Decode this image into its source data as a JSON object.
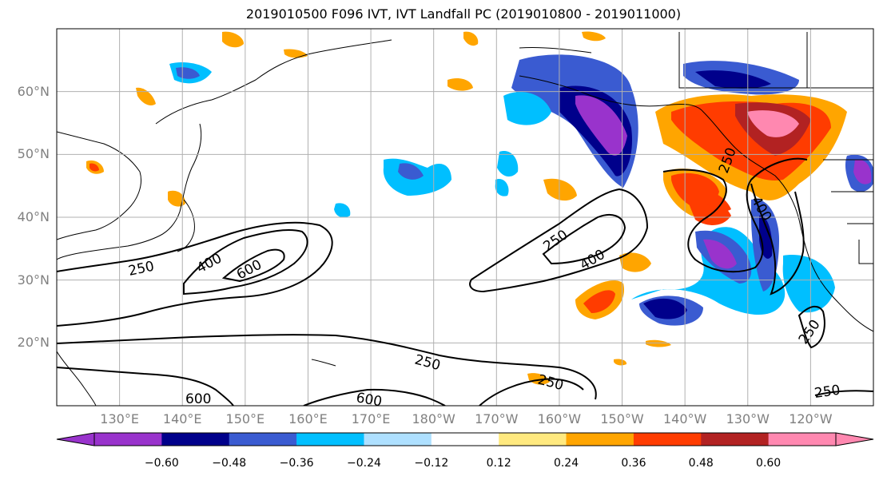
{
  "title": "2019010500 F096 IVT, IVT Landfall PC (2019010800 - 2019011000)",
  "map": {
    "lat_labels": [
      "60°N",
      "50°N",
      "40°N",
      "30°N",
      "20°N"
    ],
    "lat_values": [
      60,
      50,
      40,
      30,
      20
    ],
    "lon_labels": [
      "130°E",
      "140°E",
      "150°E",
      "160°E",
      "170°E",
      "180°W",
      "170°W",
      "160°W",
      "150°W",
      "140°W",
      "130°W",
      "120°W"
    ],
    "lon_values": [
      130,
      140,
      150,
      160,
      170,
      180,
      190,
      200,
      210,
      220,
      230,
      240
    ],
    "lon_range": [
      120,
      250
    ],
    "lat_range": [
      10,
      70
    ],
    "contour_labels": [
      "250",
      "400",
      "600",
      "250",
      "400",
      "250",
      "400",
      "250",
      "250",
      "600",
      "600",
      "250",
      "250"
    ],
    "gridlines": true
  },
  "colorbar": {
    "ticks": [
      "−0.60",
      "−0.48",
      "−0.36",
      "−0.24",
      "−0.12",
      "0.12",
      "0.24",
      "0.36",
      "0.48",
      "0.60"
    ],
    "colors": [
      "#9933cc",
      "#00008b",
      "#3a5bd1",
      "#00bfff",
      "#aee0ff",
      "#ffffff",
      "#ffe97f",
      "#ffa500",
      "#ff3c00",
      "#b22222",
      "#ff88b0"
    ],
    "extend": "both"
  }
}
